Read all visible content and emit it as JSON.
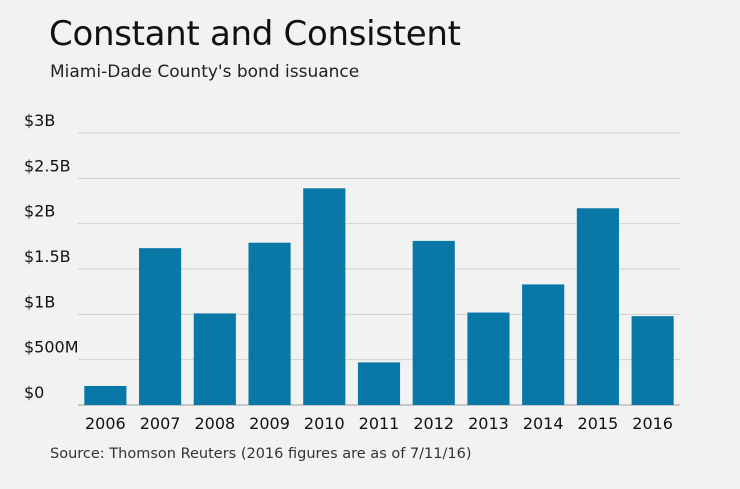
{
  "title": "Constant and Consistent",
  "subtitle": "Miami-Dade County's bond issuance",
  "source": "Source: Thomson Reuters (2016 figures are as of 7/11/16)",
  "colors": {
    "bar": "#0a78a6",
    "grid": "#d0d2d0",
    "axis": "#9a9c9a",
    "background": "#f1f2f1"
  },
  "chart_data": {
    "type": "bar",
    "categories": [
      "2006",
      "2007",
      "2008",
      "2009",
      "2010",
      "2011",
      "2012",
      "2013",
      "2014",
      "2015",
      "2016"
    ],
    "values": [
      0.21,
      1.73,
      1.01,
      1.79,
      2.39,
      0.47,
      1.81,
      1.02,
      1.33,
      2.17,
      0.98
    ],
    "unit": "billions of dollars",
    "ylim": [
      0,
      3
    ],
    "yticks": [
      {
        "value": 0,
        "label": "$0"
      },
      {
        "value": 0.5,
        "label": "$500M"
      },
      {
        "value": 1,
        "label": "$1B"
      },
      {
        "value": 1.5,
        "label": "$1.5B"
      },
      {
        "value": 2,
        "label": "$2B"
      },
      {
        "value": 2.5,
        "label": "$2.5B"
      },
      {
        "value": 3,
        "label": "$3B"
      }
    ],
    "grid": true,
    "legend": "none"
  }
}
